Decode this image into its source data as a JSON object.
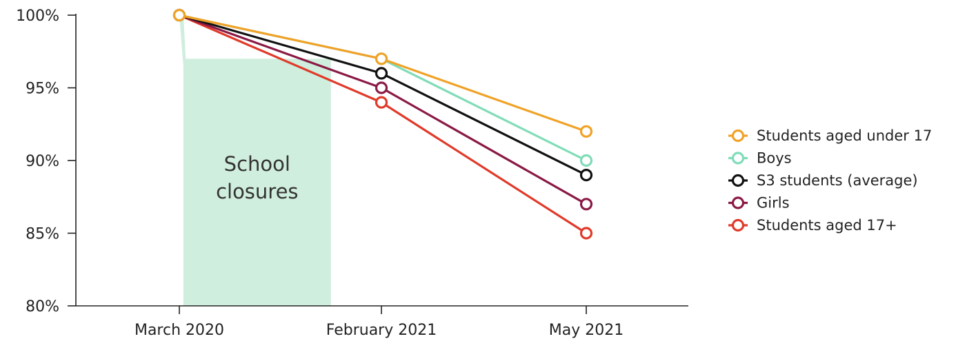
{
  "chart_data": {
    "type": "line",
    "title": "",
    "xlabel": "",
    "ylabel": "",
    "categories": [
      "March 2020",
      "February 2021",
      "May 2021"
    ],
    "ylim": [
      80,
      100
    ],
    "yticks": [
      100,
      95,
      90,
      85,
      80
    ],
    "ytick_labels": [
      "100%",
      "95%",
      "90%",
      "85%",
      "80%"
    ],
    "grid": false,
    "legend_position": "right",
    "shaded_region": {
      "label_lines": [
        "School",
        "closures"
      ],
      "x_start": 0.02,
      "x_end": 0.75,
      "color": "#cfeedd"
    },
    "series": [
      {
        "name": "Students aged 17+",
        "color": "#e03a2a",
        "values": [
          100,
          94,
          85
        ]
      },
      {
        "name": "Girls",
        "color": "#8a1a45",
        "values": [
          100,
          95,
          87
        ]
      },
      {
        "name": "S3 students (average)",
        "color": "#111111",
        "values": [
          100,
          96,
          89
        ]
      },
      {
        "name": "Boys",
        "color": "#7fdcb8",
        "values": [
          100,
          97,
          90
        ]
      },
      {
        "name": "Students aged under 17",
        "color": "#f0a227",
        "values": [
          100,
          97,
          92
        ]
      }
    ],
    "legend_order": [
      "Students aged under 17",
      "Boys",
      "S3 students (average)",
      "Girls",
      "Students aged 17+"
    ]
  }
}
